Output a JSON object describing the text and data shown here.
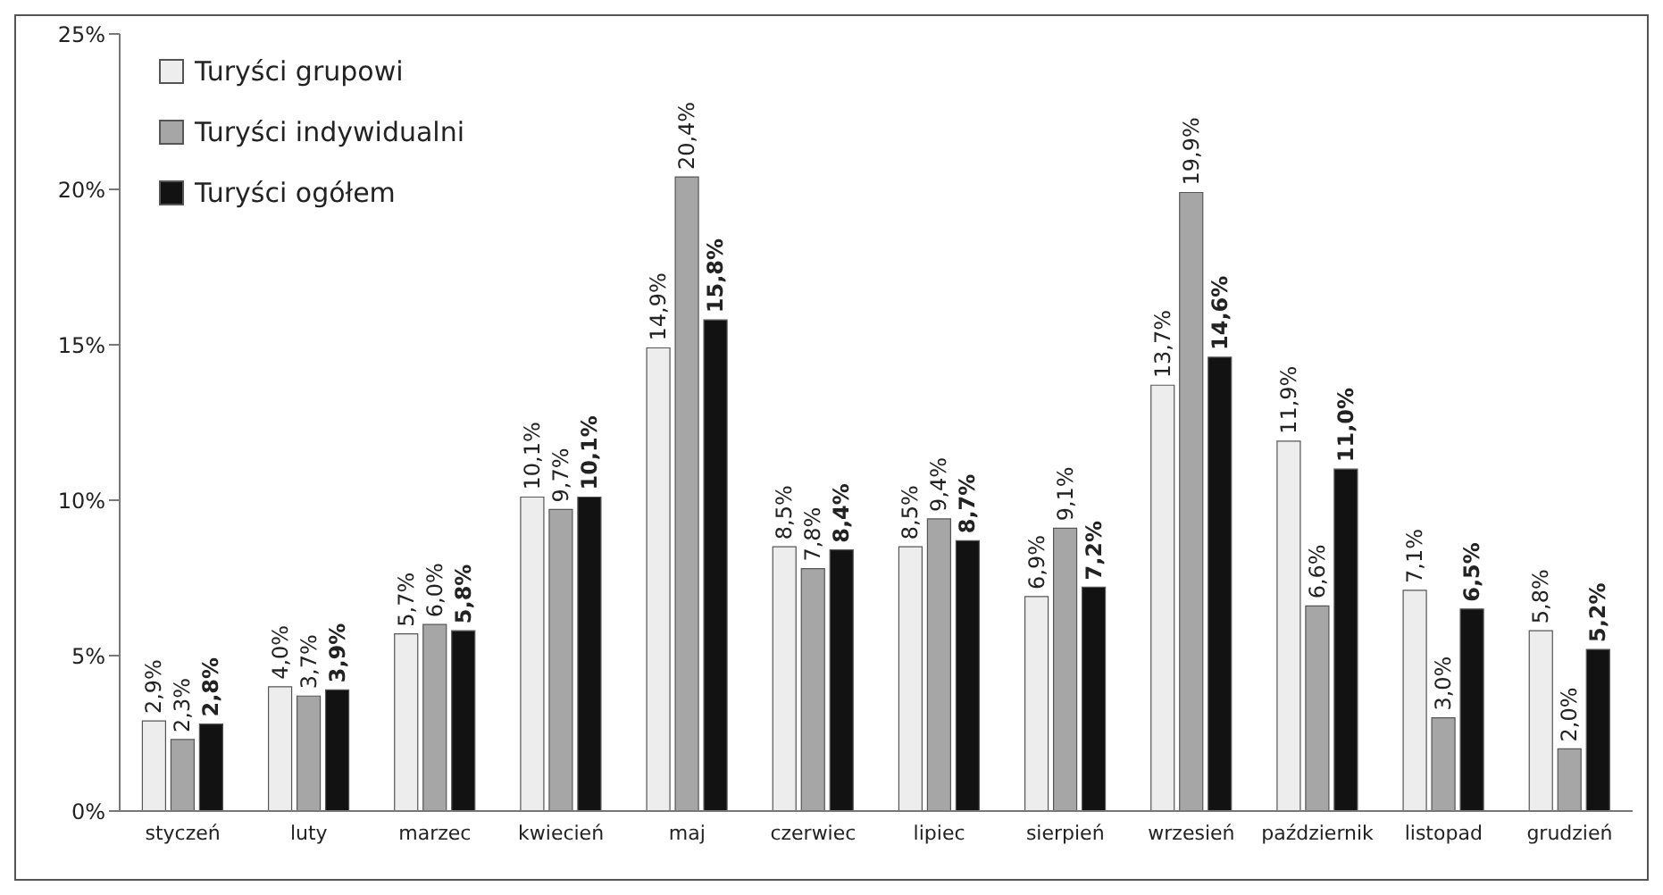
{
  "chart_data": {
    "type": "bar",
    "categories": [
      "styczeń",
      "luty",
      "marzec",
      "kwiecień",
      "maj",
      "czerwiec",
      "lipiec",
      "sierpień",
      "wrzesień",
      "październik",
      "listopad",
      "grudzień"
    ],
    "series": [
      {
        "name": "Turyści grupowi",
        "color": "#ededed",
        "values": [
          2.9,
          4.0,
          5.7,
          10.1,
          14.9,
          8.5,
          8.5,
          6.9,
          13.7,
          11.9,
          7.1,
          5.8
        ],
        "value_labels": [
          "2,9%",
          "4,0%",
          "5,7%",
          "10,1%",
          "14,9%",
          "8,5%",
          "8,5%",
          "6,9%",
          "13,7%",
          "11,9%",
          "7,1%",
          "5,8%"
        ]
      },
      {
        "name": "Turyści indywidualni",
        "color": "#a6a6a6",
        "values": [
          2.3,
          3.7,
          6.0,
          9.7,
          20.4,
          7.8,
          9.4,
          9.1,
          19.9,
          6.6,
          3.0,
          2.0
        ],
        "value_labels": [
          "2,3%",
          "3,7%",
          "6,0%",
          "9,7%",
          "20,4%",
          "7,8%",
          "9,4%",
          "9,1%",
          "19,9%",
          "6,6%",
          "3,0%",
          "2,0%"
        ]
      },
      {
        "name": "Turyści ogółem",
        "color": "#121212",
        "values": [
          2.8,
          3.9,
          5.8,
          10.1,
          15.8,
          8.4,
          8.7,
          7.2,
          14.6,
          11.0,
          6.5,
          5.2
        ],
        "value_labels": [
          "2,8%",
          "3,9%",
          "5,8%",
          "10,1%",
          "15,8%",
          "8,4%",
          "8,7%",
          "7,2%",
          "14,6%",
          "11,0%",
          "6,5%",
          "5,2%"
        ]
      }
    ],
    "ylim": [
      0,
      25
    ],
    "yticks": [
      {
        "value": 0,
        "label": "0%"
      },
      {
        "value": 5,
        "label": "5%"
      },
      {
        "value": 10,
        "label": "10%"
      },
      {
        "value": 15,
        "label": "15%"
      },
      {
        "value": 20,
        "label": "20%"
      },
      {
        "value": 25,
        "label": "25%"
      }
    ],
    "grid": false,
    "legend": "top left"
  }
}
